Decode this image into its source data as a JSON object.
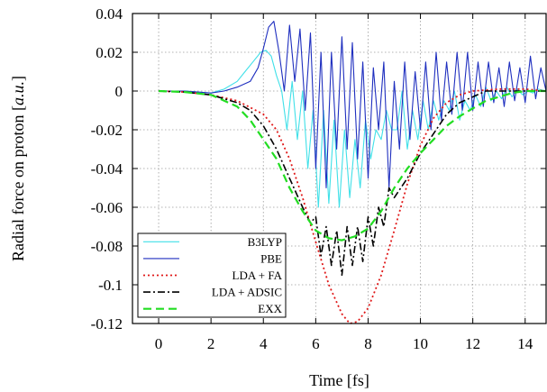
{
  "chart_data": {
    "type": "line",
    "xlabel": "Time [fs]",
    "ylabel_prefix": "Radial force on proton [",
    "ylabel_unit": "a.u.",
    "ylabel_suffix": "]",
    "xlim": [
      -1,
      14.8
    ],
    "ylim": [
      -0.12,
      0.04
    ],
    "xticks": [
      0,
      2,
      4,
      6,
      8,
      10,
      12,
      14
    ],
    "yticks": [
      0.04,
      0.02,
      0,
      -0.02,
      -0.04,
      -0.06,
      -0.08,
      -0.1,
      -0.12
    ],
    "xtick_labels": [
      "0",
      "2",
      "4",
      "6",
      "8",
      "10",
      "12",
      "14"
    ],
    "ytick_labels": [
      "0.04",
      "0.02",
      "0",
      "-0.02",
      "-0.04",
      "-0.06",
      "-0.08",
      "-0.1",
      "-0.12"
    ],
    "grid": true,
    "legend_position": "bottom-left",
    "series": [
      {
        "name": "B3LYP",
        "color": "#40e0e8",
        "style": "solid",
        "x": [
          0,
          1,
          2,
          2.5,
          3,
          3.3,
          3.6,
          3.9,
          4.1,
          4.3,
          4.5,
          4.7,
          4.9,
          5.1,
          5.3,
          5.5,
          5.7,
          5.9,
          6.1,
          6.3,
          6.5,
          6.7,
          6.9,
          7.1,
          7.3,
          7.5,
          7.7,
          7.9,
          8.1,
          8.3,
          8.5,
          8.7,
          8.9,
          9.1,
          9.3,
          9.5,
          9.7,
          9.9,
          10.1,
          10.3,
          10.5,
          10.7,
          10.9,
          11.1,
          11.3,
          11.5,
          11.7,
          11.9,
          12.1,
          12.3,
          12.5,
          12.7,
          12.9,
          13.1,
          13.3,
          13.5,
          13.7,
          13.9,
          14.1,
          14.3,
          14.5,
          14.8
        ],
        "y": [
          0,
          0,
          -0.001,
          0.001,
          0.005,
          0.01,
          0.015,
          0.02,
          0.021,
          0.018,
          0.008,
          0.0,
          -0.02,
          0.005,
          -0.025,
          0.0,
          -0.04,
          -0.01,
          -0.06,
          -0.01,
          -0.058,
          -0.015,
          -0.06,
          -0.02,
          -0.055,
          -0.025,
          -0.05,
          -0.015,
          -0.035,
          -0.02,
          -0.025,
          -0.01,
          -0.02,
          -0.02,
          0.0,
          -0.03,
          -0.01,
          -0.025,
          -0.005,
          -0.02,
          -0.005,
          -0.015,
          -0.005,
          -0.01,
          0.0,
          -0.015,
          -0.005,
          -0.01,
          -0.002,
          -0.008,
          0.002,
          -0.005,
          0.0,
          -0.004,
          0.002,
          -0.003,
          0.001,
          -0.002,
          0.0,
          -0.001,
          0.001,
          0.0
        ]
      },
      {
        "name": "PBE",
        "color": "#1f2fbf",
        "style": "solid",
        "x": [
          0,
          1,
          2,
          2.5,
          3,
          3.5,
          3.8,
          4.0,
          4.2,
          4.4,
          4.6,
          4.8,
          5.0,
          5.2,
          5.4,
          5.6,
          5.8,
          6.0,
          6.2,
          6.4,
          6.6,
          6.8,
          7.0,
          7.2,
          7.4,
          7.6,
          7.8,
          8.0,
          8.2,
          8.4,
          8.6,
          8.8,
          9.0,
          9.2,
          9.4,
          9.6,
          9.8,
          10.0,
          10.2,
          10.4,
          10.6,
          10.8,
          11.0,
          11.2,
          11.4,
          11.6,
          11.8,
          12.0,
          12.2,
          12.4,
          12.6,
          12.8,
          13.0,
          13.2,
          13.4,
          13.6,
          13.8,
          14.0,
          14.2,
          14.4,
          14.6,
          14.8
        ],
        "y": [
          0,
          0,
          -0.001,
          0.0,
          0.002,
          0.005,
          0.012,
          0.022,
          0.033,
          0.036,
          0.02,
          0.0,
          0.034,
          0.005,
          0.032,
          -0.01,
          0.03,
          -0.04,
          0.02,
          -0.05,
          0.02,
          -0.03,
          0.028,
          -0.03,
          0.025,
          -0.035,
          0.015,
          -0.045,
          0.012,
          -0.02,
          0.015,
          -0.05,
          0.005,
          -0.03,
          0.015,
          -0.025,
          0.01,
          -0.02,
          0.015,
          -0.02,
          0.02,
          -0.015,
          0.015,
          -0.012,
          0.02,
          -0.01,
          0.02,
          -0.01,
          0.015,
          -0.008,
          0.015,
          -0.006,
          0.012,
          -0.008,
          0.015,
          -0.005,
          0.012,
          -0.006,
          0.018,
          -0.004,
          0.012,
          0.0
        ]
      },
      {
        "name": "LDA + FA",
        "color": "#e01818",
        "style": "dotted",
        "x": [
          0,
          1,
          2,
          3,
          4,
          4.5,
          5,
          5.5,
          6,
          6.5,
          7,
          7.3,
          7.6,
          8,
          8.5,
          9,
          9.5,
          10,
          10.5,
          11,
          11.5,
          12,
          13,
          14,
          14.8
        ],
        "y": [
          0,
          -0.0005,
          -0.002,
          -0.005,
          -0.012,
          -0.02,
          -0.035,
          -0.055,
          -0.078,
          -0.1,
          -0.115,
          -0.12,
          -0.119,
          -0.112,
          -0.095,
          -0.072,
          -0.048,
          -0.028,
          -0.014,
          -0.006,
          -0.002,
          0.0,
          0.001,
          0.001,
          0.0
        ]
      },
      {
        "name": "LDA + ADSIC",
        "color": "#000000",
        "style": "dashdot",
        "x": [
          0,
          1,
          2,
          3,
          3.5,
          4,
          4.5,
          5,
          5.5,
          5.8,
          6.0,
          6.2,
          6.4,
          6.6,
          6.8,
          7.0,
          7.2,
          7.4,
          7.6,
          7.8,
          8.0,
          8.2,
          8.4,
          8.6,
          8.8,
          9.0,
          9.5,
          10,
          10.5,
          11,
          11.5,
          12,
          12.5,
          13,
          13.5,
          14,
          14.8
        ],
        "y": [
          0,
          -0.0005,
          -0.002,
          -0.006,
          -0.01,
          -0.018,
          -0.03,
          -0.045,
          -0.06,
          -0.068,
          -0.065,
          -0.085,
          -0.07,
          -0.09,
          -0.072,
          -0.095,
          -0.07,
          -0.09,
          -0.07,
          -0.088,
          -0.065,
          -0.08,
          -0.06,
          -0.07,
          -0.05,
          -0.055,
          -0.045,
          -0.032,
          -0.022,
          -0.012,
          -0.006,
          -0.003,
          0.0,
          0.0,
          0.0,
          0.0,
          0.0
        ]
      },
      {
        "name": "EXX",
        "color": "#22dd22",
        "style": "dashed",
        "x": [
          0,
          1,
          2,
          3,
          3.5,
          4,
          4.5,
          5,
          5.5,
          6,
          6.5,
          7,
          7.5,
          8,
          8.5,
          9,
          9.5,
          10,
          10.5,
          11,
          11.5,
          12,
          12.5,
          13,
          13.5,
          14,
          14.8
        ],
        "y": [
          0,
          -0.0005,
          -0.002,
          -0.008,
          -0.015,
          -0.025,
          -0.035,
          -0.05,
          -0.062,
          -0.072,
          -0.076,
          -0.077,
          -0.075,
          -0.071,
          -0.062,
          -0.05,
          -0.04,
          -0.032,
          -0.025,
          -0.018,
          -0.013,
          -0.009,
          -0.005,
          -0.003,
          -0.001,
          0.0,
          0.0
        ]
      }
    ]
  }
}
